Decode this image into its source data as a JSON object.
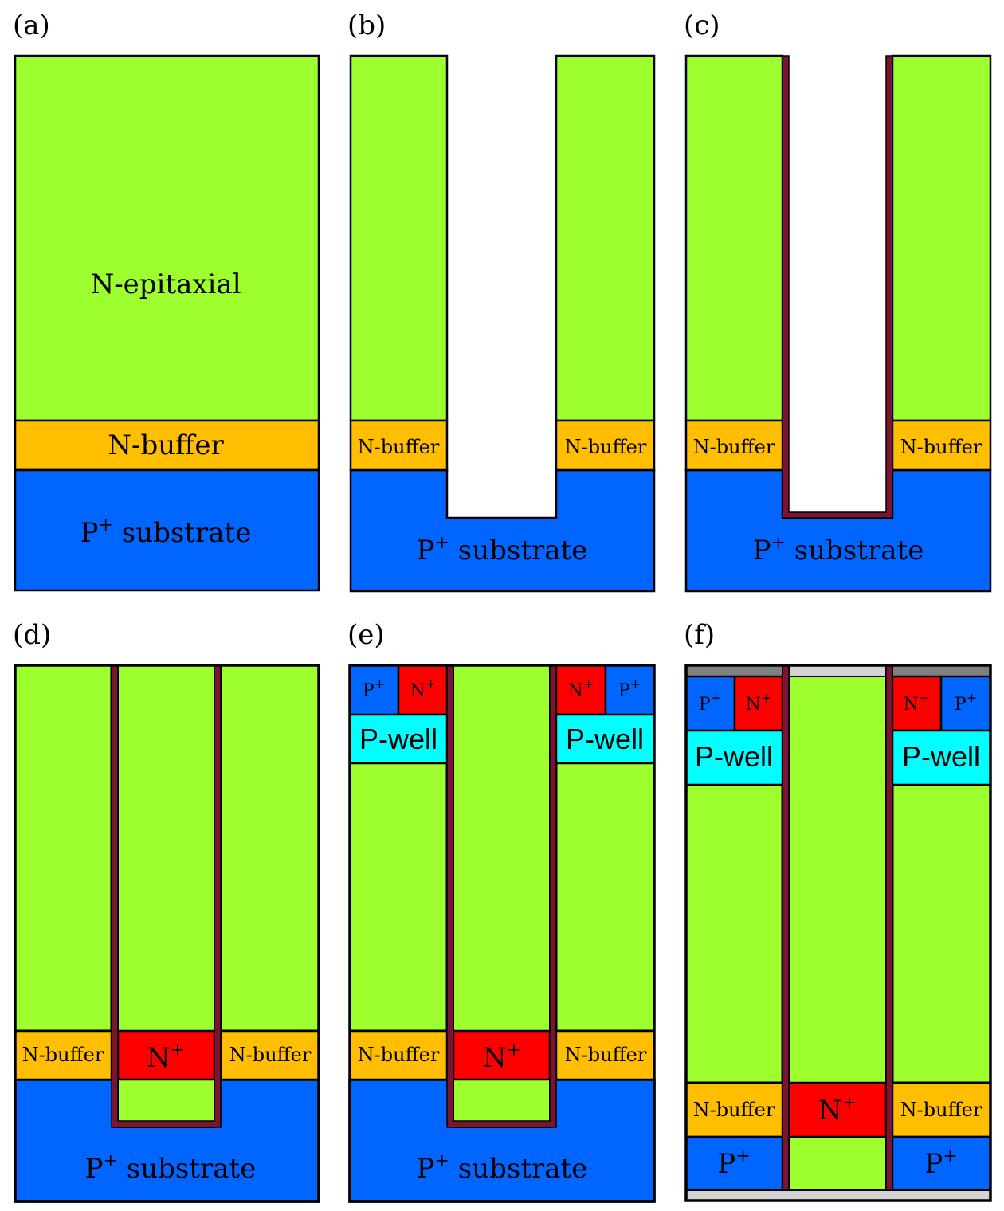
{
  "colors": {
    "n_epi": "#9dff2e",
    "n_buffer": "#ffbf00",
    "p_substrate": "#0066ff",
    "n_plus": "#ff0000",
    "p_well": "#00ffff",
    "liner": "#7a1430",
    "metal_dark": "#808080",
    "metal_light": "#d3d3d3",
    "outline": "#000000"
  },
  "panels": {
    "a": {
      "label": "(a)",
      "epi": "N-epitaxial",
      "buffer": "N-buffer",
      "substrate_p": "P",
      "substrate_sup": "+",
      "substrate_rest": " substrate"
    },
    "b": {
      "label": "(b)",
      "buffer_left": "N-buffer",
      "buffer_right": "N-buffer",
      "substrate_p": "P",
      "substrate_sup": "+",
      "substrate_rest": " substrate"
    },
    "c": {
      "label": "(c)",
      "buffer_left": "N-buffer",
      "buffer_right": "N-buffer",
      "substrate_p": "P",
      "substrate_sup": "+",
      "substrate_rest": " substrate"
    },
    "d": {
      "label": "(d)",
      "buffer_left": "N-buffer",
      "buffer_right": "N-buffer",
      "nplus_n": "N",
      "nplus_sup": "+",
      "substrate_p": "P",
      "substrate_sup": "+",
      "substrate_rest": " substrate"
    },
    "e": {
      "label": "(e)",
      "p_plus_p": "P",
      "p_plus_sup": "+",
      "n_plus_n": "N",
      "n_plus_sup": "+",
      "pwell": "P-well",
      "buffer_left": "N-buffer",
      "buffer_right": "N-buffer",
      "nplus_n": "N",
      "nplus_sup": "+",
      "substrate_p": "P",
      "substrate_sup": "+",
      "substrate_rest": " substrate"
    },
    "f": {
      "label": "(f)",
      "p_plus_p": "P",
      "p_plus_sup": "+",
      "n_plus_n": "N",
      "n_plus_sup": "+",
      "pwell": "P-well",
      "buffer_left": "N-buffer",
      "buffer_right": "N-buffer",
      "nplus_n": "N",
      "nplus_sup": "+",
      "bottom_p": "P",
      "bottom_sup": "+"
    }
  }
}
